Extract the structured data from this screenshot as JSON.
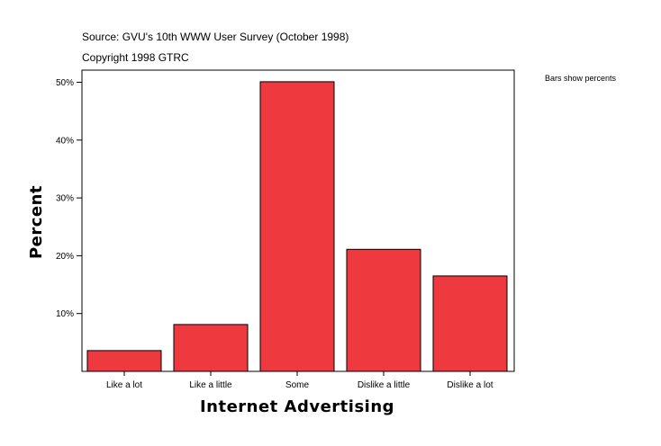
{
  "header": {
    "source": "Source: GVU's 10th WWW User Survey (October 1998)",
    "copyright": "Copyright 1998 GTRC"
  },
  "note": "Bars show percents",
  "chart_data": {
    "type": "bar",
    "categories": [
      "Like a lot",
      "Like a little",
      "Some",
      "Dislike a little",
      "Dislike a lot"
    ],
    "values": [
      3.6,
      8.1,
      50.1,
      21.1,
      16.5
    ],
    "xlabel": "Internet Advertising",
    "ylabel": "Percent",
    "ylim": [
      0,
      52
    ],
    "yticks": [
      10,
      20,
      30,
      40,
      50
    ],
    "ytick_labels": [
      "10%",
      "20%",
      "30%",
      "40%",
      "50%"
    ],
    "bar_color": "#ee3a3f",
    "grid": false
  }
}
